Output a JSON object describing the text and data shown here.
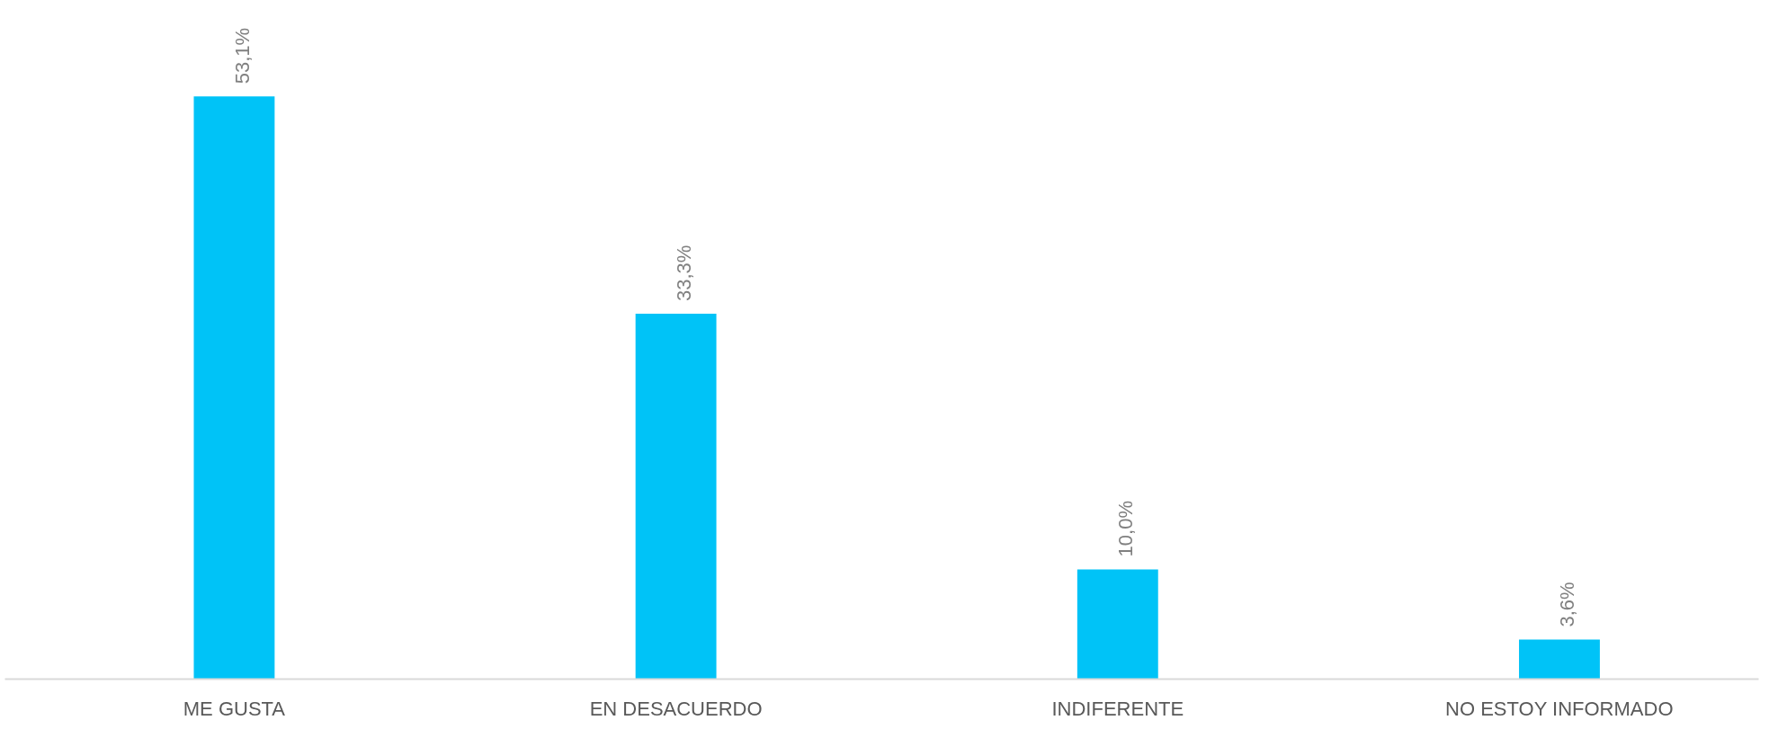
{
  "chart_data": {
    "type": "bar",
    "categories": [
      "ME GUSTA",
      "EN DESACUERDO",
      "INDIFERENTE",
      "NO ESTOY INFORMADO"
    ],
    "values": [
      53.1,
      33.3,
      10.0,
      3.6
    ],
    "color": "#00c3f7",
    "value_labels": [
      "53,1%",
      "33,3%",
      "10,0%",
      "3,6%"
    ],
    "grid": false
  }
}
